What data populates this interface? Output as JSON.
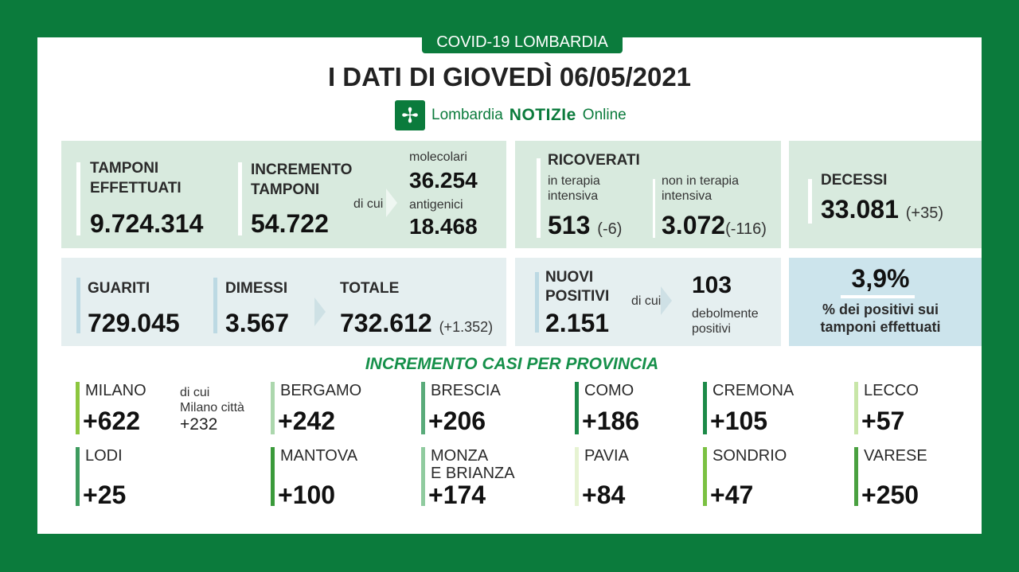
{
  "header": {
    "tab": "COVID-19 LOMBARDIA",
    "title": "I DATI DI GIOVEDÌ 06/05/2021",
    "brand_pre": "Lombardia",
    "brand_bold": "NOTIZIe",
    "brand_post": "Online"
  },
  "tamponi": {
    "label1": "TAMPONI",
    "label2": "EFFETTUATI",
    "value": "9.724.314"
  },
  "incremento": {
    "label1": "INCREMENTO",
    "label2": "TAMPONI",
    "value": "54.722",
    "di_cui": "di cui",
    "mol_label": "molecolari",
    "mol_value": "36.254",
    "ant_label": "antigenici",
    "ant_value": "18.468"
  },
  "ricoverati": {
    "label": "RICOVERATI",
    "ti_label1": "in terapia",
    "ti_label2": "intensiva",
    "ti_value": "513",
    "ti_delta": "(-6)",
    "nti_label1": "non in terapia",
    "nti_label2": "intensiva",
    "nti_value": "3.072",
    "nti_delta": "(-116)"
  },
  "decessi": {
    "label": "DECESSI",
    "value": "33.081",
    "delta": "(+35)"
  },
  "guariti": {
    "label": "GUARITI",
    "value": "729.045"
  },
  "dimessi": {
    "label": "DIMESSI",
    "value": "3.567"
  },
  "totale": {
    "label": "TOTALE",
    "value": "732.612",
    "delta": "(+1.352)"
  },
  "nuovi": {
    "label1": "NUOVI",
    "label2": "POSITIVI",
    "value": "2.151",
    "di_cui": "di cui",
    "deb_value": "103",
    "deb_label1": "debolmente",
    "deb_label2": "positivi"
  },
  "percent": {
    "value": "3,9%",
    "label1": "% dei positivi sui",
    "label2": "tamponi effettuati"
  },
  "provinces_title": "INCREMENTO CASI PER PROVINCIA",
  "milano_city": {
    "l1": "di cui",
    "l2": "Milano città",
    "value": "+232"
  },
  "provinces": [
    {
      "name": "MILANO",
      "value": "+622",
      "color": "#8cc63f"
    },
    {
      "name": "BERGAMO",
      "value": "+242",
      "color": "#acd7ad"
    },
    {
      "name": "BRESCIA",
      "value": "+206",
      "color": "#5aab7a"
    },
    {
      "name": "COMO",
      "value": "+186",
      "color": "#1c8a48"
    },
    {
      "name": "CREMONA",
      "value": "+105",
      "color": "#1c8a48"
    },
    {
      "name": "LECCO",
      "value": "+57",
      "color": "#c8e6a8"
    },
    {
      "name": "LODI",
      "value": "+25",
      "color": "#3d9b5e"
    },
    {
      "name": "MANTOVA",
      "value": "+100",
      "color": "#3a9a3a"
    },
    {
      "name": "MONZA",
      "name2": "E BRIANZA",
      "value": "+174",
      "color": "#90cb9f"
    },
    {
      "name": "PAVIA",
      "value": "+84",
      "color": "#e6f3d2"
    },
    {
      "name": "SONDRIO",
      "value": "+47",
      "color": "#7bc142"
    },
    {
      "name": "VARESE",
      "value": "+250",
      "color": "#4aa040"
    }
  ]
}
